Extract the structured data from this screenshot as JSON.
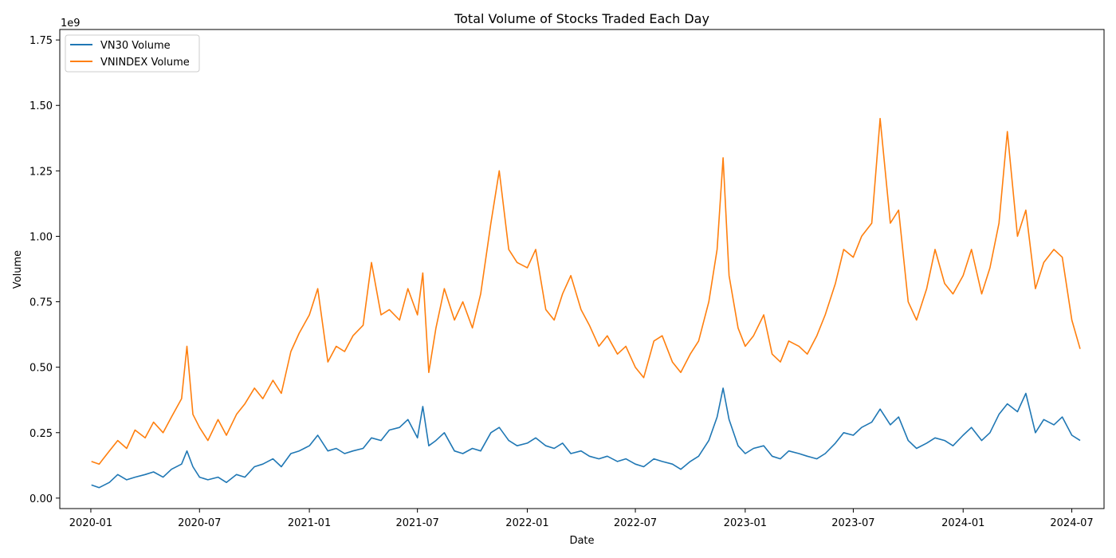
{
  "chart_data": {
    "type": "line",
    "title": "Total Volume of Stocks Traded Each Day",
    "xlabel": "Date",
    "ylabel": "Volume",
    "y_scale_label": "1e9",
    "y_scale": 1000000000,
    "xlim": [
      "2019-11-10",
      "2024-08-24"
    ],
    "ylim": [
      -0.04,
      1.79
    ],
    "x_ticks": [
      {
        "date": "2020-01-01",
        "label": "2020-01"
      },
      {
        "date": "2020-07-01",
        "label": "2020-07"
      },
      {
        "date": "2021-01-01",
        "label": "2021-01"
      },
      {
        "date": "2021-07-01",
        "label": "2021-07"
      },
      {
        "date": "2022-01-01",
        "label": "2022-01"
      },
      {
        "date": "2022-07-01",
        "label": "2022-07"
      },
      {
        "date": "2023-01-01",
        "label": "2023-01"
      },
      {
        "date": "2023-07-01",
        "label": "2023-07"
      },
      {
        "date": "2024-01-01",
        "label": "2024-01"
      },
      {
        "date": "2024-07-01",
        "label": "2024-07"
      }
    ],
    "y_ticks": [
      {
        "value": 0.0,
        "label": "0.00"
      },
      {
        "value": 0.25,
        "label": "0.25"
      },
      {
        "value": 0.5,
        "label": "0.50"
      },
      {
        "value": 0.75,
        "label": "0.75"
      },
      {
        "value": 1.0,
        "label": "1.00"
      },
      {
        "value": 1.25,
        "label": "1.25"
      },
      {
        "value": 1.5,
        "label": "1.50"
      },
      {
        "value": 1.75,
        "label": "1.75"
      }
    ],
    "grid": false,
    "legend_position": "top-left",
    "series": [
      {
        "name": "VN30 Volume",
        "color": "#1f77b4",
        "points": [
          [
            "2020-01-02",
            0.05
          ],
          [
            "2020-01-15",
            0.04
          ],
          [
            "2020-02-01",
            0.06
          ],
          [
            "2020-02-15",
            0.09
          ],
          [
            "2020-03-01",
            0.07
          ],
          [
            "2020-03-15",
            0.08
          ],
          [
            "2020-04-01",
            0.09
          ],
          [
            "2020-04-15",
            0.1
          ],
          [
            "2020-05-01",
            0.08
          ],
          [
            "2020-05-15",
            0.11
          ],
          [
            "2020-06-01",
            0.13
          ],
          [
            "2020-06-10",
            0.18
          ],
          [
            "2020-06-20",
            0.12
          ],
          [
            "2020-07-01",
            0.08
          ],
          [
            "2020-07-15",
            0.07
          ],
          [
            "2020-08-01",
            0.08
          ],
          [
            "2020-08-15",
            0.06
          ],
          [
            "2020-09-01",
            0.09
          ],
          [
            "2020-09-15",
            0.08
          ],
          [
            "2020-10-01",
            0.12
          ],
          [
            "2020-10-15",
            0.13
          ],
          [
            "2020-11-01",
            0.15
          ],
          [
            "2020-11-15",
            0.12
          ],
          [
            "2020-12-01",
            0.17
          ],
          [
            "2020-12-15",
            0.18
          ],
          [
            "2021-01-01",
            0.2
          ],
          [
            "2021-01-15",
            0.24
          ],
          [
            "2021-02-01",
            0.18
          ],
          [
            "2021-02-15",
            0.19
          ],
          [
            "2021-03-01",
            0.17
          ],
          [
            "2021-03-15",
            0.18
          ],
          [
            "2021-04-01",
            0.19
          ],
          [
            "2021-04-15",
            0.23
          ],
          [
            "2021-05-01",
            0.22
          ],
          [
            "2021-05-15",
            0.26
          ],
          [
            "2021-06-01",
            0.27
          ],
          [
            "2021-06-15",
            0.3
          ],
          [
            "2021-07-01",
            0.23
          ],
          [
            "2021-07-10",
            0.35
          ],
          [
            "2021-07-20",
            0.2
          ],
          [
            "2021-08-01",
            0.22
          ],
          [
            "2021-08-15",
            0.25
          ],
          [
            "2021-09-01",
            0.18
          ],
          [
            "2021-09-15",
            0.17
          ],
          [
            "2021-10-01",
            0.19
          ],
          [
            "2021-10-15",
            0.18
          ],
          [
            "2021-11-01",
            0.25
          ],
          [
            "2021-11-15",
            0.27
          ],
          [
            "2021-12-01",
            0.22
          ],
          [
            "2021-12-15",
            0.2
          ],
          [
            "2022-01-01",
            0.21
          ],
          [
            "2022-01-15",
            0.23
          ],
          [
            "2022-02-01",
            0.2
          ],
          [
            "2022-02-15",
            0.19
          ],
          [
            "2022-03-01",
            0.21
          ],
          [
            "2022-03-15",
            0.17
          ],
          [
            "2022-04-01",
            0.18
          ],
          [
            "2022-04-15",
            0.16
          ],
          [
            "2022-05-01",
            0.15
          ],
          [
            "2022-05-15",
            0.16
          ],
          [
            "2022-06-01",
            0.14
          ],
          [
            "2022-06-15",
            0.15
          ],
          [
            "2022-07-01",
            0.13
          ],
          [
            "2022-07-15",
            0.12
          ],
          [
            "2022-08-01",
            0.15
          ],
          [
            "2022-08-15",
            0.14
          ],
          [
            "2022-09-01",
            0.13
          ],
          [
            "2022-09-15",
            0.11
          ],
          [
            "2022-10-01",
            0.14
          ],
          [
            "2022-10-15",
            0.16
          ],
          [
            "2022-11-01",
            0.22
          ],
          [
            "2022-11-15",
            0.31
          ],
          [
            "2022-11-25",
            0.42
          ],
          [
            "2022-12-05",
            0.3
          ],
          [
            "2022-12-20",
            0.2
          ],
          [
            "2023-01-01",
            0.17
          ],
          [
            "2023-01-15",
            0.19
          ],
          [
            "2023-02-01",
            0.2
          ],
          [
            "2023-02-15",
            0.16
          ],
          [
            "2023-03-01",
            0.15
          ],
          [
            "2023-03-15",
            0.18
          ],
          [
            "2023-04-01",
            0.17
          ],
          [
            "2023-04-15",
            0.16
          ],
          [
            "2023-05-01",
            0.15
          ],
          [
            "2023-05-15",
            0.17
          ],
          [
            "2023-06-01",
            0.21
          ],
          [
            "2023-06-15",
            0.25
          ],
          [
            "2023-07-01",
            0.24
          ],
          [
            "2023-07-15",
            0.27
          ],
          [
            "2023-08-01",
            0.29
          ],
          [
            "2023-08-15",
            0.34
          ],
          [
            "2023-09-01",
            0.28
          ],
          [
            "2023-09-15",
            0.31
          ],
          [
            "2023-10-01",
            0.22
          ],
          [
            "2023-10-15",
            0.19
          ],
          [
            "2023-11-01",
            0.21
          ],
          [
            "2023-11-15",
            0.23
          ],
          [
            "2023-12-01",
            0.22
          ],
          [
            "2023-12-15",
            0.2
          ],
          [
            "2024-01-01",
            0.24
          ],
          [
            "2024-01-15",
            0.27
          ],
          [
            "2024-02-01",
            0.22
          ],
          [
            "2024-02-15",
            0.25
          ],
          [
            "2024-03-01",
            0.32
          ],
          [
            "2024-03-15",
            0.36
          ],
          [
            "2024-04-01",
            0.33
          ],
          [
            "2024-04-15",
            0.4
          ],
          [
            "2024-05-01",
            0.25
          ],
          [
            "2024-05-15",
            0.3
          ],
          [
            "2024-06-01",
            0.28
          ],
          [
            "2024-06-15",
            0.31
          ],
          [
            "2024-07-01",
            0.24
          ],
          [
            "2024-07-15",
            0.22
          ]
        ]
      },
      {
        "name": "VNINDEX Volume",
        "color": "#ff7f0e",
        "points": [
          [
            "2020-01-02",
            0.14
          ],
          [
            "2020-01-15",
            0.13
          ],
          [
            "2020-02-01",
            0.18
          ],
          [
            "2020-02-15",
            0.22
          ],
          [
            "2020-03-01",
            0.19
          ],
          [
            "2020-03-15",
            0.26
          ],
          [
            "2020-04-01",
            0.23
          ],
          [
            "2020-04-15",
            0.29
          ],
          [
            "2020-05-01",
            0.25
          ],
          [
            "2020-05-15",
            0.31
          ],
          [
            "2020-06-01",
            0.38
          ],
          [
            "2020-06-10",
            0.58
          ],
          [
            "2020-06-20",
            0.32
          ],
          [
            "2020-07-01",
            0.27
          ],
          [
            "2020-07-15",
            0.22
          ],
          [
            "2020-08-01",
            0.3
          ],
          [
            "2020-08-15",
            0.24
          ],
          [
            "2020-09-01",
            0.32
          ],
          [
            "2020-09-15",
            0.36
          ],
          [
            "2020-10-01",
            0.42
          ],
          [
            "2020-10-15",
            0.38
          ],
          [
            "2020-11-01",
            0.45
          ],
          [
            "2020-11-15",
            0.4
          ],
          [
            "2020-12-01",
            0.56
          ],
          [
            "2020-12-15",
            0.63
          ],
          [
            "2021-01-01",
            0.7
          ],
          [
            "2021-01-15",
            0.8
          ],
          [
            "2021-02-01",
            0.52
          ],
          [
            "2021-02-15",
            0.58
          ],
          [
            "2021-03-01",
            0.56
          ],
          [
            "2021-03-15",
            0.62
          ],
          [
            "2021-04-01",
            0.66
          ],
          [
            "2021-04-15",
            0.9
          ],
          [
            "2021-05-01",
            0.7
          ],
          [
            "2021-05-15",
            0.72
          ],
          [
            "2021-06-01",
            0.68
          ],
          [
            "2021-06-15",
            0.8
          ],
          [
            "2021-07-01",
            0.7
          ],
          [
            "2021-07-10",
            0.86
          ],
          [
            "2021-07-20",
            0.48
          ],
          [
            "2021-08-01",
            0.65
          ],
          [
            "2021-08-15",
            0.8
          ],
          [
            "2021-09-01",
            0.68
          ],
          [
            "2021-09-15",
            0.75
          ],
          [
            "2021-10-01",
            0.65
          ],
          [
            "2021-10-15",
            0.78
          ],
          [
            "2021-11-01",
            1.05
          ],
          [
            "2021-11-15",
            1.25
          ],
          [
            "2021-12-01",
            0.95
          ],
          [
            "2021-12-15",
            0.9
          ],
          [
            "2022-01-01",
            0.88
          ],
          [
            "2022-01-15",
            0.95
          ],
          [
            "2022-02-01",
            0.72
          ],
          [
            "2022-02-15",
            0.68
          ],
          [
            "2022-03-01",
            0.78
          ],
          [
            "2022-03-15",
            0.85
          ],
          [
            "2022-04-01",
            0.72
          ],
          [
            "2022-04-15",
            0.66
          ],
          [
            "2022-05-01",
            0.58
          ],
          [
            "2022-05-15",
            0.62
          ],
          [
            "2022-06-01",
            0.55
          ],
          [
            "2022-06-15",
            0.58
          ],
          [
            "2022-07-01",
            0.5
          ],
          [
            "2022-07-15",
            0.46
          ],
          [
            "2022-08-01",
            0.6
          ],
          [
            "2022-08-15",
            0.62
          ],
          [
            "2022-09-01",
            0.52
          ],
          [
            "2022-09-15",
            0.48
          ],
          [
            "2022-10-01",
            0.55
          ],
          [
            "2022-10-15",
            0.6
          ],
          [
            "2022-11-01",
            0.75
          ],
          [
            "2022-11-15",
            0.95
          ],
          [
            "2022-11-25",
            1.3
          ],
          [
            "2022-12-05",
            0.85
          ],
          [
            "2022-12-20",
            0.65
          ],
          [
            "2023-01-01",
            0.58
          ],
          [
            "2023-01-15",
            0.62
          ],
          [
            "2023-02-01",
            0.7
          ],
          [
            "2023-02-15",
            0.55
          ],
          [
            "2023-03-01",
            0.52
          ],
          [
            "2023-03-15",
            0.6
          ],
          [
            "2023-04-01",
            0.58
          ],
          [
            "2023-04-15",
            0.55
          ],
          [
            "2023-05-01",
            0.62
          ],
          [
            "2023-05-15",
            0.7
          ],
          [
            "2023-06-01",
            0.82
          ],
          [
            "2023-06-15",
            0.95
          ],
          [
            "2023-07-01",
            0.92
          ],
          [
            "2023-07-15",
            1.0
          ],
          [
            "2023-08-01",
            1.05
          ],
          [
            "2023-08-15",
            1.45
          ],
          [
            "2023-09-01",
            1.05
          ],
          [
            "2023-09-15",
            1.1
          ],
          [
            "2023-10-01",
            0.75
          ],
          [
            "2023-10-15",
            0.68
          ],
          [
            "2023-11-01",
            0.8
          ],
          [
            "2023-11-15",
            0.95
          ],
          [
            "2023-12-01",
            0.82
          ],
          [
            "2023-12-15",
            0.78
          ],
          [
            "2024-01-01",
            0.85
          ],
          [
            "2024-01-15",
            0.95
          ],
          [
            "2024-02-01",
            0.78
          ],
          [
            "2024-02-15",
            0.88
          ],
          [
            "2024-03-01",
            1.05
          ],
          [
            "2024-03-15",
            1.4
          ],
          [
            "2024-04-01",
            1.0
          ],
          [
            "2024-04-15",
            1.1
          ],
          [
            "2024-05-01",
            0.8
          ],
          [
            "2024-05-15",
            0.9
          ],
          [
            "2024-06-01",
            0.95
          ],
          [
            "2024-06-15",
            0.92
          ],
          [
            "2024-07-01",
            0.68
          ],
          [
            "2024-07-15",
            0.57
          ]
        ]
      }
    ]
  }
}
